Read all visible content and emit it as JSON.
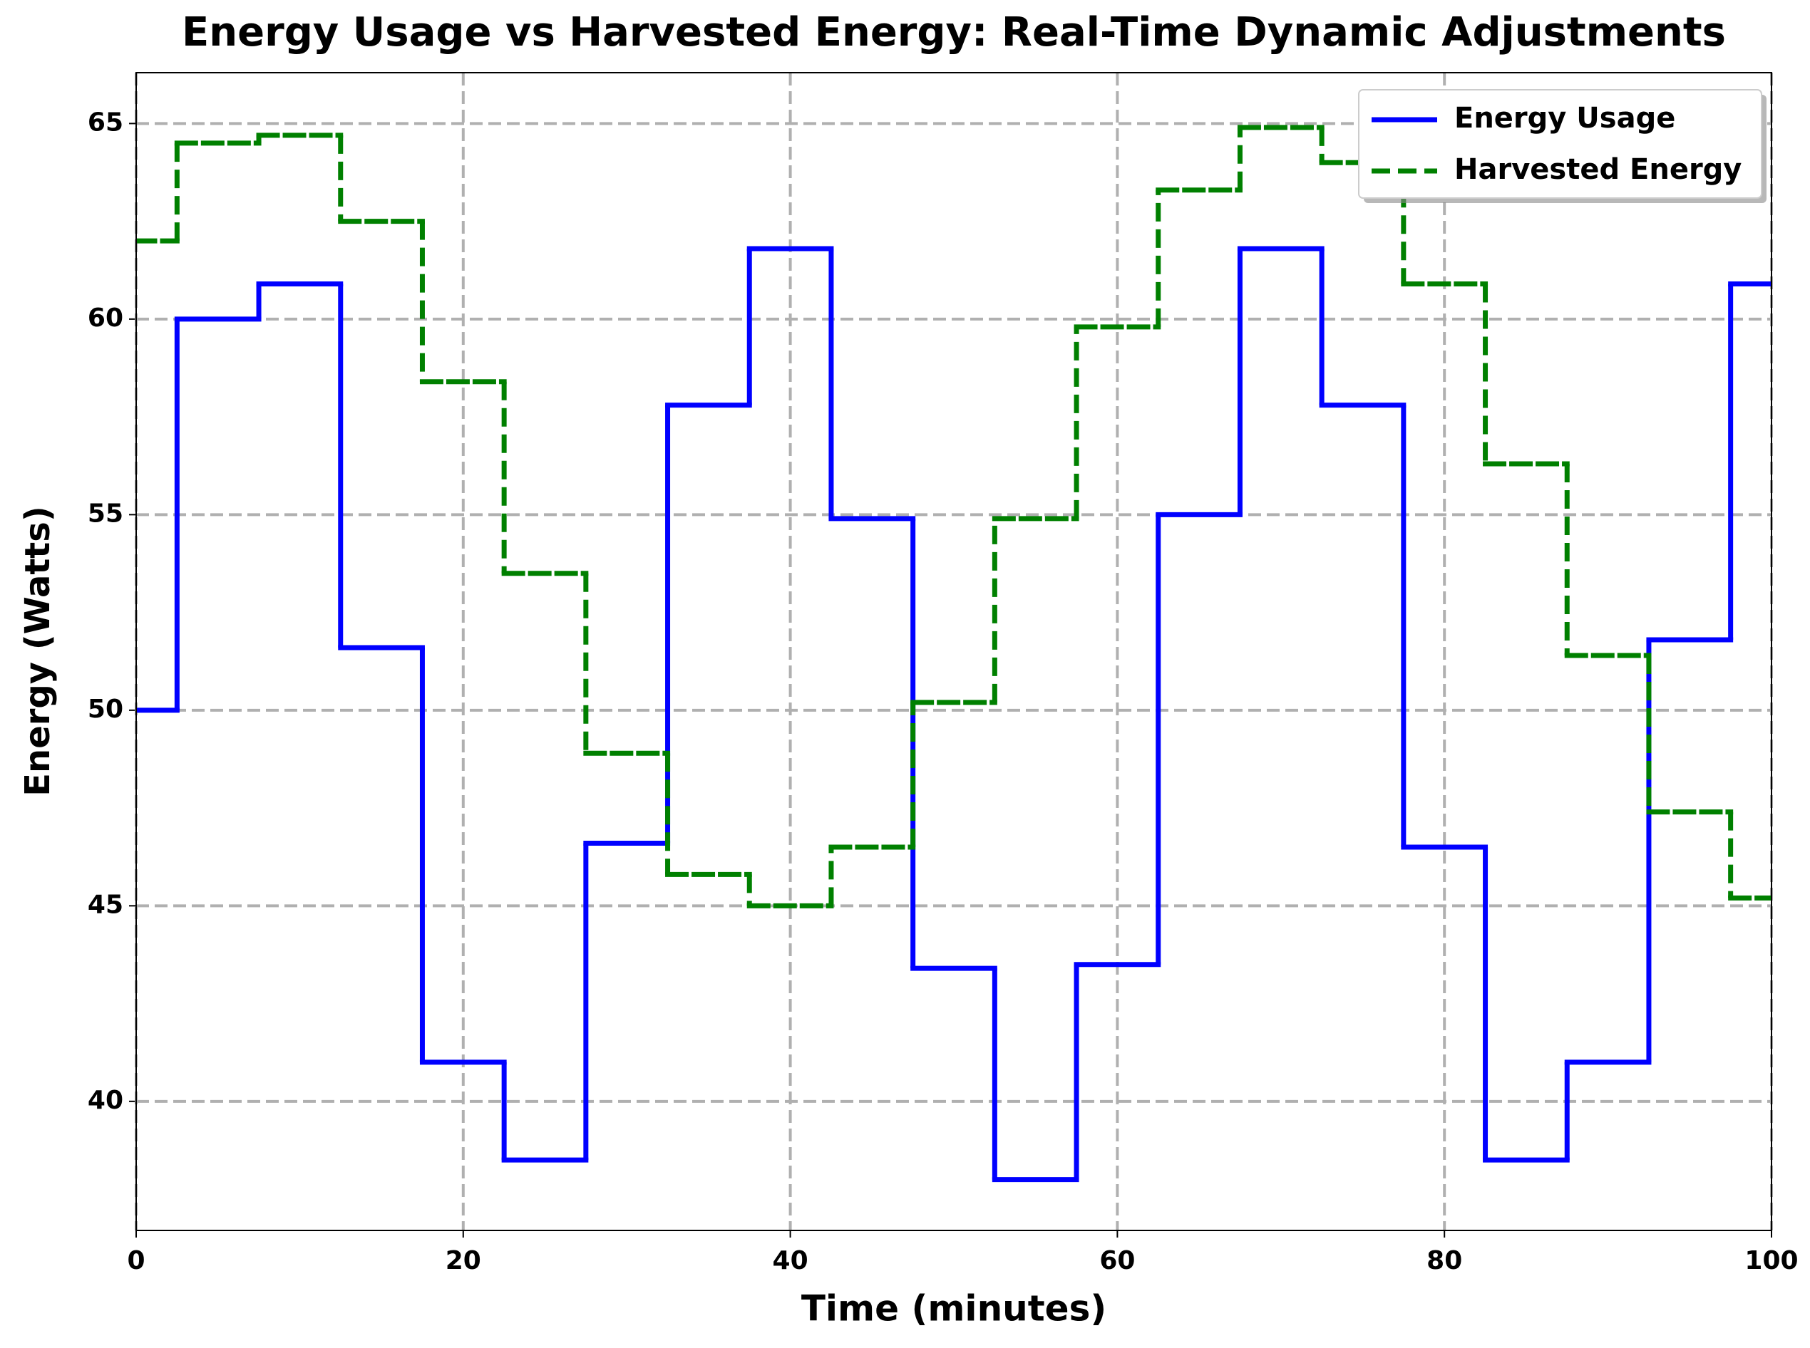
{
  "chart_data": {
    "type": "line",
    "step": "mid",
    "title": "Energy Usage vs Harvested Energy: Real-Time Dynamic Adjustments",
    "x_label": "Time (minutes)",
    "y_label": "Energy (Watts)",
    "x": [
      0,
      5,
      10,
      15,
      20,
      25,
      30,
      35,
      40,
      45,
      50,
      55,
      60,
      65,
      70,
      75,
      80,
      85,
      90,
      95,
      100
    ],
    "series": [
      {
        "name": "Energy Usage",
        "color": "#0000ff",
        "dash": false,
        "values": [
          50,
          60,
          60.9,
          51.6,
          41,
          38.5,
          46.6,
          57.8,
          61.8,
          54.9,
          43.4,
          38,
          43.5,
          55,
          61.8,
          57.8,
          46.5,
          38.5,
          41,
          51.8,
          60.9
        ]
      },
      {
        "name": "Harvested Energy",
        "color": "#008000",
        "dash": true,
        "values": [
          62,
          64.5,
          64.7,
          62.5,
          58.4,
          53.5,
          48.9,
          45.8,
          45,
          46.5,
          50.2,
          54.9,
          59.8,
          63.3,
          64.9,
          64,
          60.9,
          56.3,
          51.4,
          47.4,
          45.2
        ]
      }
    ],
    "xlim": [
      0,
      100
    ],
    "xticks": [
      0,
      20,
      40,
      60,
      80,
      100
    ],
    "ylim": [
      36.7,
      66.3
    ],
    "yticks": [
      40,
      45,
      50,
      55,
      60,
      65
    ],
    "grid": true,
    "legend": "upper right"
  }
}
